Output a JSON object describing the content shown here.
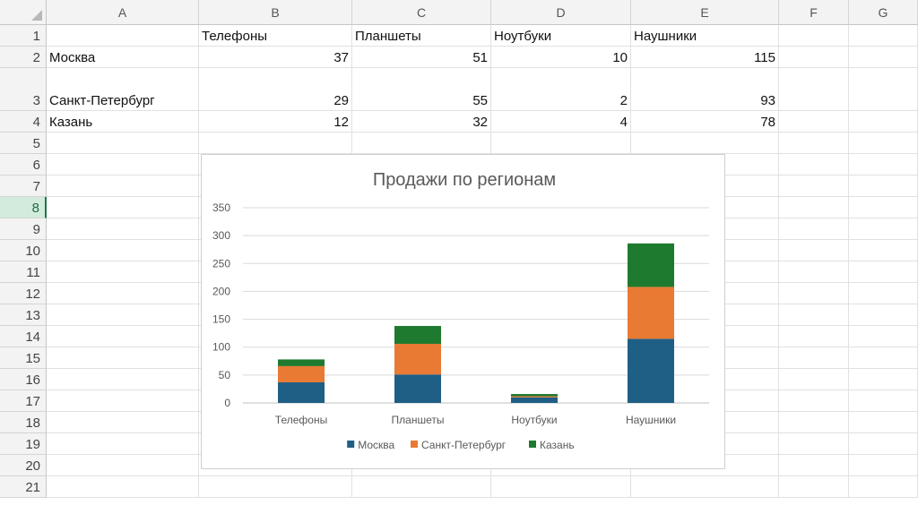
{
  "sheet": {
    "columns": [
      "A",
      "B",
      "C",
      "D",
      "E",
      "F",
      "G"
    ],
    "rows": [
      "1",
      "2",
      "3",
      "4",
      "5",
      "6",
      "7",
      "8",
      "9",
      "10",
      "11",
      "12",
      "13",
      "14",
      "15",
      "16",
      "17",
      "18",
      "19",
      "20",
      "21"
    ],
    "selected_row": "8",
    "cells": {
      "B1": "Телефоны",
      "C1": "Планшеты",
      "D1": "Ноутбуки",
      "E1": "Наушники",
      "A2": "Москва",
      "B2": "37",
      "C2": "51",
      "D2": "10",
      "E2": "115",
      "A3": "Санкт-Петербург",
      "B3": "29",
      "C3": "55",
      "D3": "2",
      "E3": "93",
      "A4": "Казань",
      "B4": "12",
      "C4": "32",
      "D4": "4",
      "E4": "78"
    }
  },
  "chart_data": {
    "type": "bar",
    "stacked": true,
    "title": "Продажи по регионам",
    "categories": [
      "Телефоны",
      "Планшеты",
      "Ноутбуки",
      "Наушники"
    ],
    "series": [
      {
        "name": "Москва",
        "values": [
          37,
          51,
          10,
          115
        ],
        "color": "#1f5f86"
      },
      {
        "name": "Санкт-Петербург",
        "values": [
          29,
          55,
          2,
          93
        ],
        "color": "#e97a33"
      },
      {
        "name": "Казань",
        "values": [
          12,
          32,
          4,
          78
        ],
        "color": "#1e7a2e"
      }
    ],
    "ylim": [
      0,
      350
    ],
    "yticks": [
      "0",
      "50",
      "100",
      "150",
      "200",
      "250",
      "300",
      "350"
    ],
    "grid": true,
    "legend": "bottom",
    "xlabel": "",
    "ylabel": ""
  }
}
